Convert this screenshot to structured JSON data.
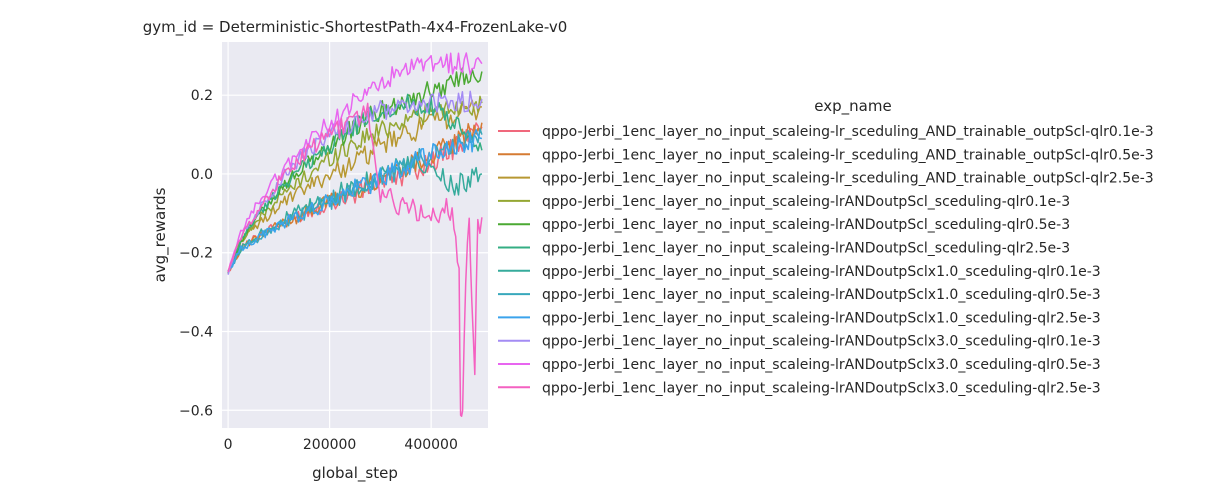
{
  "chart_data": {
    "type": "line",
    "title": "gym_id = Deterministic-ShortestPath-4x4-FrozenLake-v0",
    "xlabel": "global_step",
    "ylabel": "avg_rewards",
    "xlim": [
      -12000,
      512000
    ],
    "ylim": [
      -0.645,
      0.335
    ],
    "xticks": [
      0,
      200000,
      400000
    ],
    "xtick_labels": [
      "0",
      "200000",
      "400000"
    ],
    "yticks": [
      -0.6,
      -0.4,
      -0.2,
      0.0,
      0.2
    ],
    "ytick_labels": [
      "−0.6",
      "−0.4",
      "−0.2",
      "0.0",
      "0.2"
    ],
    "grid": true,
    "legend_title": "exp_name",
    "legend_position": "right",
    "series": [
      {
        "name": "qppo-Jerbi_1enc_layer_no_input_scaleing-lr_sceduling_AND_trainable_outpScl-qlr0.1e-3",
        "color": "#f0687c",
        "x": [
          0,
          25000,
          50000,
          100000,
          150000,
          200000,
          250000,
          300000,
          350000,
          400000,
          450000,
          500000
        ],
        "y": [
          -0.25,
          -0.19,
          -0.16,
          -0.13,
          -0.1,
          -0.07,
          -0.05,
          -0.02,
          0.0,
          0.03,
          0.07,
          0.12
        ]
      },
      {
        "name": "qppo-Jerbi_1enc_layer_no_input_scaleing-lr_sceduling_AND_trainable_outpScl-qlr0.5e-3",
        "color": "#d57b32",
        "x": [
          0,
          25000,
          50000,
          100000,
          150000,
          200000,
          250000,
          300000,
          350000,
          400000,
          450000,
          500000
        ],
        "y": [
          -0.25,
          -0.19,
          -0.17,
          -0.13,
          -0.1,
          -0.07,
          -0.04,
          -0.01,
          0.02,
          0.05,
          0.08,
          0.13
        ]
      },
      {
        "name": "qppo-Jerbi_1enc_layer_no_input_scaleing-lr_sceduling_AND_trainable_outpScl-qlr2.5e-3",
        "color": "#b79832",
        "x": [
          0,
          25000,
          50000,
          100000,
          150000,
          200000,
          250000,
          300000,
          350000,
          400000,
          450000,
          500000
        ],
        "y": [
          -0.25,
          -0.17,
          -0.14,
          -0.08,
          -0.04,
          0.0,
          0.03,
          0.07,
          0.1,
          0.13,
          0.15,
          0.17
        ]
      },
      {
        "name": "qppo-Jerbi_1enc_layer_no_input_scaleing-lrANDoutpScl_sceduling-qlr0.1e-3",
        "color": "#94a733",
        "x": [
          0,
          25000,
          50000,
          100000,
          150000,
          200000,
          250000,
          300000,
          350000,
          400000,
          450000,
          500000
        ],
        "y": [
          -0.25,
          -0.17,
          -0.13,
          -0.06,
          -0.01,
          0.04,
          0.08,
          0.11,
          0.14,
          0.16,
          0.17,
          0.18
        ]
      },
      {
        "name": "qppo-Jerbi_1enc_layer_no_input_scaleing-lrANDoutpScl_sceduling-qlr0.5e-3",
        "color": "#4ba933",
        "x": [
          0,
          25000,
          50000,
          100000,
          150000,
          200000,
          250000,
          300000,
          350000,
          400000,
          450000,
          500000
        ],
        "y": [
          -0.25,
          -0.17,
          -0.12,
          -0.04,
          0.02,
          0.07,
          0.12,
          0.16,
          0.19,
          0.21,
          0.24,
          0.26
        ]
      },
      {
        "name": "qppo-Jerbi_1enc_layer_no_input_scaleing-lrANDoutpScl_sceduling-qlr2.5e-3",
        "color": "#34ae83",
        "x": [
          0,
          25000,
          50000,
          100000,
          150000,
          200000,
          250000,
          300000,
          350000,
          400000,
          450000,
          500000
        ],
        "y": [
          -0.25,
          -0.17,
          -0.12,
          -0.04,
          0.02,
          0.07,
          0.12,
          0.16,
          0.18,
          0.17,
          0.12,
          0.06
        ]
      },
      {
        "name": "qppo-Jerbi_1enc_layer_no_input_scaleing-lrANDoutpSclx1.0_sceduling-qlr0.1e-3",
        "color": "#36ab9c",
        "x": [
          0,
          25000,
          50000,
          100000,
          150000,
          200000,
          250000,
          300000,
          350000,
          400000,
          450000,
          500000
        ],
        "y": [
          -0.25,
          -0.19,
          -0.16,
          -0.12,
          -0.09,
          -0.06,
          -0.03,
          0.0,
          0.02,
          0.01,
          -0.03,
          0.0
        ]
      },
      {
        "name": "qppo-Jerbi_1enc_layer_no_input_scaleing-lrANDoutpSclx1.0_sceduling-qlr0.5e-3",
        "color": "#38a8bc",
        "x": [
          0,
          25000,
          50000,
          100000,
          150000,
          200000,
          250000,
          300000,
          350000,
          400000,
          450000,
          500000
        ],
        "y": [
          -0.25,
          -0.19,
          -0.17,
          -0.13,
          -0.1,
          -0.07,
          -0.04,
          -0.01,
          0.02,
          0.05,
          0.07,
          0.1
        ]
      },
      {
        "name": "qppo-Jerbi_1enc_layer_no_input_scaleing-lrANDoutpSclx1.0_sceduling-qlr2.5e-3",
        "color": "#3ba3ec",
        "x": [
          0,
          25000,
          50000,
          100000,
          150000,
          200000,
          250000,
          300000,
          350000,
          400000,
          450000,
          500000
        ],
        "y": [
          -0.25,
          -0.19,
          -0.17,
          -0.13,
          -0.1,
          -0.07,
          -0.04,
          -0.01,
          0.02,
          0.05,
          0.07,
          0.09
        ]
      },
      {
        "name": "qppo-Jerbi_1enc_layer_no_input_scaleing-lrANDoutpSclx3.0_sceduling-qlr0.1e-3",
        "color": "#a48cf4",
        "x": [
          0,
          25000,
          50000,
          100000,
          150000,
          200000,
          250000,
          300000,
          350000,
          400000,
          450000,
          500000
        ],
        "y": [
          -0.25,
          -0.16,
          -0.11,
          -0.02,
          0.05,
          0.1,
          0.13,
          0.16,
          0.17,
          0.18,
          0.18,
          0.19
        ]
      },
      {
        "name": "qppo-Jerbi_1enc_layer_no_input_scaleing-lrANDoutpSclx3.0_sceduling-qlr0.5e-3",
        "color": "#e865f0",
        "x": [
          0,
          25000,
          50000,
          100000,
          150000,
          200000,
          250000,
          300000,
          350000,
          400000,
          450000,
          500000
        ],
        "y": [
          -0.25,
          -0.15,
          -0.09,
          0.0,
          0.07,
          0.13,
          0.18,
          0.23,
          0.26,
          0.28,
          0.28,
          0.28
        ]
      },
      {
        "name": "qppo-Jerbi_1enc_layer_no_input_scaleing-lrANDoutpSclx3.0_sceduling-qlr2.5e-3",
        "color": "#f461c1",
        "x": [
          0,
          25000,
          50000,
          100000,
          150000,
          200000,
          250000,
          275000,
          300000,
          340000,
          380000,
          400000,
          430000,
          445000,
          455000,
          458000,
          462000,
          468000,
          475000,
          480000,
          486000,
          492000,
          500000
        ],
        "y": [
          -0.25,
          -0.16,
          -0.11,
          -0.02,
          0.05,
          0.1,
          0.14,
          0.16,
          -0.05,
          -0.08,
          -0.1,
          -0.12,
          -0.08,
          -0.12,
          -0.25,
          -0.61,
          -0.61,
          -0.25,
          -0.12,
          -0.3,
          -0.49,
          -0.14,
          -0.11
        ]
      }
    ]
  }
}
